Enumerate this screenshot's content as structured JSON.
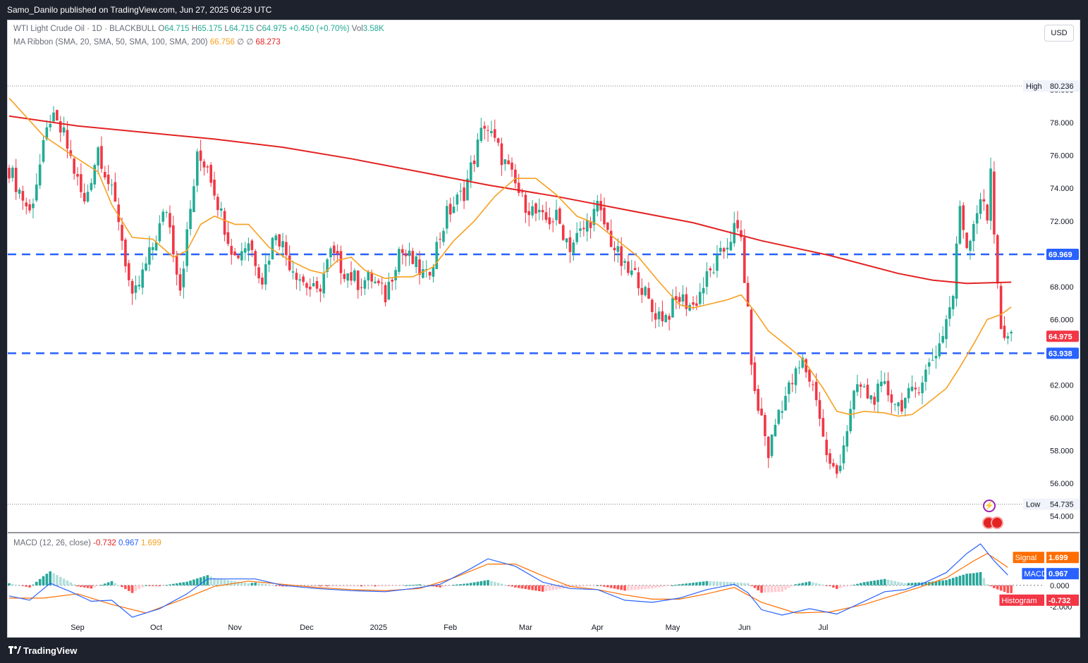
{
  "header": {
    "publish_line": "Samo_Danilo published on TradingView.com, Jun 27, 2025 06:29 UTC"
  },
  "legend": {
    "symbol": "WTI Light Crude Oil · 1D · BLACKBULL",
    "o_label": "O",
    "o": "64.715",
    "h_label": "H",
    "h": "65.175",
    "l_label": "L",
    "l": "64.715",
    "c_label": "C",
    "c": "64.975",
    "change": "+0.450 (+0.70%)",
    "vol_label": "Vol",
    "vol": "3.58K",
    "ma_label": "MA Ribbon (SMA, 20, SMA, 50, SMA, 100, SMA, 200)",
    "ma_val1": "66.756",
    "ma_empty1": "∅",
    "ma_empty2": "∅",
    "ma_val2": "68.273"
  },
  "currency_button": "USD",
  "macd_legend": {
    "label": "MACD (12, 26, close)",
    "hist": "-0.732",
    "macd": "0.967",
    "signal": "1.699"
  },
  "footer": {
    "brand": "TradingView"
  },
  "colors": {
    "up": "#22ab94",
    "down": "#f23645",
    "sma20": "#f7a01f",
    "sma200": "#e32222",
    "level": "#2962ff",
    "macd": "#2962ff",
    "signal": "#ff6d00"
  },
  "chart_data": [
    {
      "type": "candlestick",
      "title": "WTI Light Crude Oil · 1D · BLACKBULL",
      "ylim": [
        53.0,
        82.0
      ],
      "x_ticks": [
        "Sep",
        "Oct",
        "Nov",
        "Dec",
        "2025",
        "Feb",
        "Mar",
        "Apr",
        "May",
        "Jun",
        "Jul"
      ],
      "y_ticks": [
        "54.000",
        "56.000",
        "58.000",
        "60.000",
        "62.000",
        "64.000",
        "66.000",
        "68.000",
        "70.000",
        "72.000",
        "74.000",
        "76.000",
        "78.000",
        "80.000"
      ],
      "close_path": [
        [
          0,
          75.2
        ],
        [
          6,
          72.5
        ],
        [
          12,
          78.3
        ],
        [
          16,
          77.2
        ],
        [
          22,
          73.0
        ],
        [
          26,
          76.5
        ],
        [
          32,
          72.2
        ],
        [
          36,
          67.0
        ],
        [
          40,
          69.3
        ],
        [
          46,
          72.8
        ],
        [
          50,
          68.0
        ],
        [
          55,
          75.8
        ],
        [
          58,
          75.5
        ],
        [
          62,
          72.4
        ],
        [
          66,
          69.8
        ],
        [
          70,
          70.8
        ],
        [
          74,
          68.5
        ],
        [
          78,
          71.5
        ],
        [
          82,
          69.5
        ],
        [
          86,
          68.3
        ],
        [
          90,
          67.5
        ],
        [
          94,
          70.0
        ],
        [
          98,
          69.0
        ],
        [
          102,
          68.3
        ],
        [
          106,
          68.5
        ],
        [
          110,
          67.4
        ],
        [
          114,
          70.3
        ],
        [
          118,
          69.5
        ],
        [
          122,
          68.5
        ],
        [
          128,
          72.4
        ],
        [
          133,
          73.8
        ],
        [
          139,
          78.0
        ],
        [
          145,
          75.5
        ],
        [
          150,
          73.3
        ],
        [
          156,
          72.0
        ],
        [
          160,
          72.2
        ],
        [
          164,
          70.5
        ],
        [
          168,
          71.5
        ],
        [
          172,
          72.8
        ],
        [
          176,
          70.8
        ],
        [
          180,
          69.0
        ],
        [
          184,
          68.5
        ],
        [
          188,
          66.5
        ],
        [
          192,
          66.2
        ],
        [
          196,
          67.3
        ],
        [
          200,
          66.8
        ],
        [
          204,
          68.5
        ],
        [
          208,
          69.8
        ],
        [
          212,
          71.5
        ],
        [
          214,
          70.9
        ],
        [
          216,
          66.2
        ],
        [
          218,
          61.2
        ],
        [
          220,
          60.0
        ],
        [
          222,
          57.8
        ],
        [
          225,
          60.5
        ],
        [
          230,
          62.6
        ],
        [
          232,
          63.4
        ],
        [
          236,
          61.4
        ],
        [
          238,
          58.7
        ],
        [
          240,
          57.0
        ],
        [
          242,
          56.6
        ],
        [
          244,
          58.5
        ],
        [
          248,
          62.0
        ],
        [
          252,
          61.2
        ],
        [
          256,
          61.8
        ],
        [
          260,
          60.8
        ],
        [
          264,
          61.4
        ],
        [
          268,
          62.8
        ],
        [
          272,
          64.5
        ],
        [
          276,
          67.5
        ],
        [
          278,
          73.0
        ],
        [
          280,
          70.5
        ],
        [
          284,
          73.5
        ],
        [
          286,
          72.0
        ],
        [
          287,
          75.4
        ],
        [
          288,
          71.5
        ],
        [
          290,
          65.2
        ],
        [
          292,
          64.5
        ],
        [
          293,
          64.97
        ]
      ],
      "sma20_path": [
        [
          0,
          79.5
        ],
        [
          10,
          77.2
        ],
        [
          20,
          75.8
        ],
        [
          26,
          75.0
        ],
        [
          30,
          73.0
        ],
        [
          36,
          71.0
        ],
        [
          42,
          70.9
        ],
        [
          48,
          69.8
        ],
        [
          52,
          70.2
        ],
        [
          56,
          71.8
        ],
        [
          60,
          72.3
        ],
        [
          66,
          71.8
        ],
        [
          70,
          71.8
        ],
        [
          76,
          70.4
        ],
        [
          82,
          69.6
        ],
        [
          88,
          69.0
        ],
        [
          92,
          68.8
        ],
        [
          96,
          69.6
        ],
        [
          100,
          69.8
        ],
        [
          104,
          69.0
        ],
        [
          110,
          68.5
        ],
        [
          114,
          68.6
        ],
        [
          118,
          68.6
        ],
        [
          124,
          69.2
        ],
        [
          130,
          70.8
        ],
        [
          136,
          72.0
        ],
        [
          142,
          73.5
        ],
        [
          148,
          74.6
        ],
        [
          154,
          74.6
        ],
        [
          160,
          73.6
        ],
        [
          166,
          72.3
        ],
        [
          172,
          71.8
        ],
        [
          178,
          70.8
        ],
        [
          184,
          69.8
        ],
        [
          190,
          68.3
        ],
        [
          196,
          66.9
        ],
        [
          200,
          66.7
        ],
        [
          204,
          66.9
        ],
        [
          210,
          67.2
        ],
        [
          214,
          67.5
        ],
        [
          218,
          66.5
        ],
        [
          222,
          65.3
        ],
        [
          228,
          64.3
        ],
        [
          232,
          63.6
        ],
        [
          238,
          61.8
        ],
        [
          242,
          60.4
        ],
        [
          246,
          60.2
        ],
        [
          250,
          60.4
        ],
        [
          256,
          60.3
        ],
        [
          260,
          60.1
        ],
        [
          264,
          60.2
        ],
        [
          268,
          60.8
        ],
        [
          274,
          61.8
        ],
        [
          278,
          63.1
        ],
        [
          282,
          64.5
        ],
        [
          286,
          66.0
        ],
        [
          290,
          66.3
        ],
        [
          293,
          66.756
        ]
      ],
      "sma200_path": [
        [
          0,
          78.4
        ],
        [
          20,
          77.8
        ],
        [
          40,
          77.4
        ],
        [
          60,
          77.0
        ],
        [
          80,
          76.5
        ],
        [
          100,
          75.8
        ],
        [
          120,
          75.0
        ],
        [
          140,
          74.2
        ],
        [
          160,
          73.5
        ],
        [
          180,
          72.7
        ],
        [
          200,
          71.9
        ],
        [
          220,
          70.8
        ],
        [
          240,
          69.9
        ],
        [
          260,
          68.8
        ],
        [
          270,
          68.4
        ],
        [
          280,
          68.2
        ],
        [
          293,
          68.273
        ]
      ],
      "levels": [
        {
          "label": "69.969",
          "value": 69.969
        },
        {
          "label": "63.938",
          "value": 63.938
        }
      ],
      "high": {
        "label": "High",
        "value": 80.236,
        "text": "80.236"
      },
      "low": {
        "label": "Low",
        "value": 54.735,
        "text": "54.735"
      },
      "last": {
        "value": 64.975,
        "text": "64.975"
      }
    },
    {
      "type": "macd",
      "title": "MACD (12, 26, close)",
      "ylim": [
        -3.2,
        4.1
      ],
      "y_ticks": [
        "-2.000",
        "0.000"
      ],
      "macd_path": [
        [
          0,
          -1.0
        ],
        [
          6,
          -1.4
        ],
        [
          12,
          0.2
        ],
        [
          18,
          -0.6
        ],
        [
          24,
          -1.5
        ],
        [
          30,
          -1.4
        ],
        [
          36,
          -3.0
        ],
        [
          44,
          -2.2
        ],
        [
          52,
          -0.8
        ],
        [
          58,
          0.6
        ],
        [
          64,
          0.6
        ],
        [
          72,
          0.6
        ],
        [
          80,
          0.0
        ],
        [
          90,
          -0.3
        ],
        [
          100,
          -0.5
        ],
        [
          110,
          -0.6
        ],
        [
          118,
          -0.3
        ],
        [
          126,
          0.1
        ],
        [
          134,
          1.4
        ],
        [
          140,
          2.5
        ],
        [
          148,
          1.8
        ],
        [
          156,
          0.3
        ],
        [
          164,
          -0.3
        ],
        [
          172,
          -0.4
        ],
        [
          180,
          -1.4
        ],
        [
          188,
          -1.6
        ],
        [
          196,
          -1.2
        ],
        [
          204,
          -0.4
        ],
        [
          212,
          0.1
        ],
        [
          216,
          -0.7
        ],
        [
          220,
          -2.3
        ],
        [
          226,
          -2.8
        ],
        [
          234,
          -2.2
        ],
        [
          242,
          -2.7
        ],
        [
          250,
          -1.5
        ],
        [
          256,
          -0.6
        ],
        [
          262,
          -0.4
        ],
        [
          268,
          0.3
        ],
        [
          274,
          1.2
        ],
        [
          280,
          3.0
        ],
        [
          284,
          3.9
        ],
        [
          288,
          2.3
        ],
        [
          292,
          0.967
        ]
      ],
      "signal_path": [
        [
          0,
          -1.2
        ],
        [
          10,
          -1.2
        ],
        [
          20,
          -0.8
        ],
        [
          30,
          -1.8
        ],
        [
          40,
          -2.6
        ],
        [
          50,
          -1.4
        ],
        [
          60,
          -0.1
        ],
        [
          70,
          0.4
        ],
        [
          80,
          0.1
        ],
        [
          90,
          -0.2
        ],
        [
          100,
          -0.4
        ],
        [
          110,
          -0.5
        ],
        [
          120,
          -0.3
        ],
        [
          130,
          0.7
        ],
        [
          140,
          2.0
        ],
        [
          148,
          2.0
        ],
        [
          156,
          0.9
        ],
        [
          164,
          -0.1
        ],
        [
          172,
          -0.4
        ],
        [
          180,
          -0.9
        ],
        [
          188,
          -1.3
        ],
        [
          196,
          -1.3
        ],
        [
          204,
          -0.8
        ],
        [
          212,
          -0.2
        ],
        [
          220,
          -1.6
        ],
        [
          230,
          -2.6
        ],
        [
          240,
          -2.5
        ],
        [
          250,
          -1.8
        ],
        [
          258,
          -1.0
        ],
        [
          266,
          -0.2
        ],
        [
          274,
          0.7
        ],
        [
          282,
          2.3
        ],
        [
          286,
          3.0
        ],
        [
          292,
          1.699
        ]
      ]
    }
  ]
}
